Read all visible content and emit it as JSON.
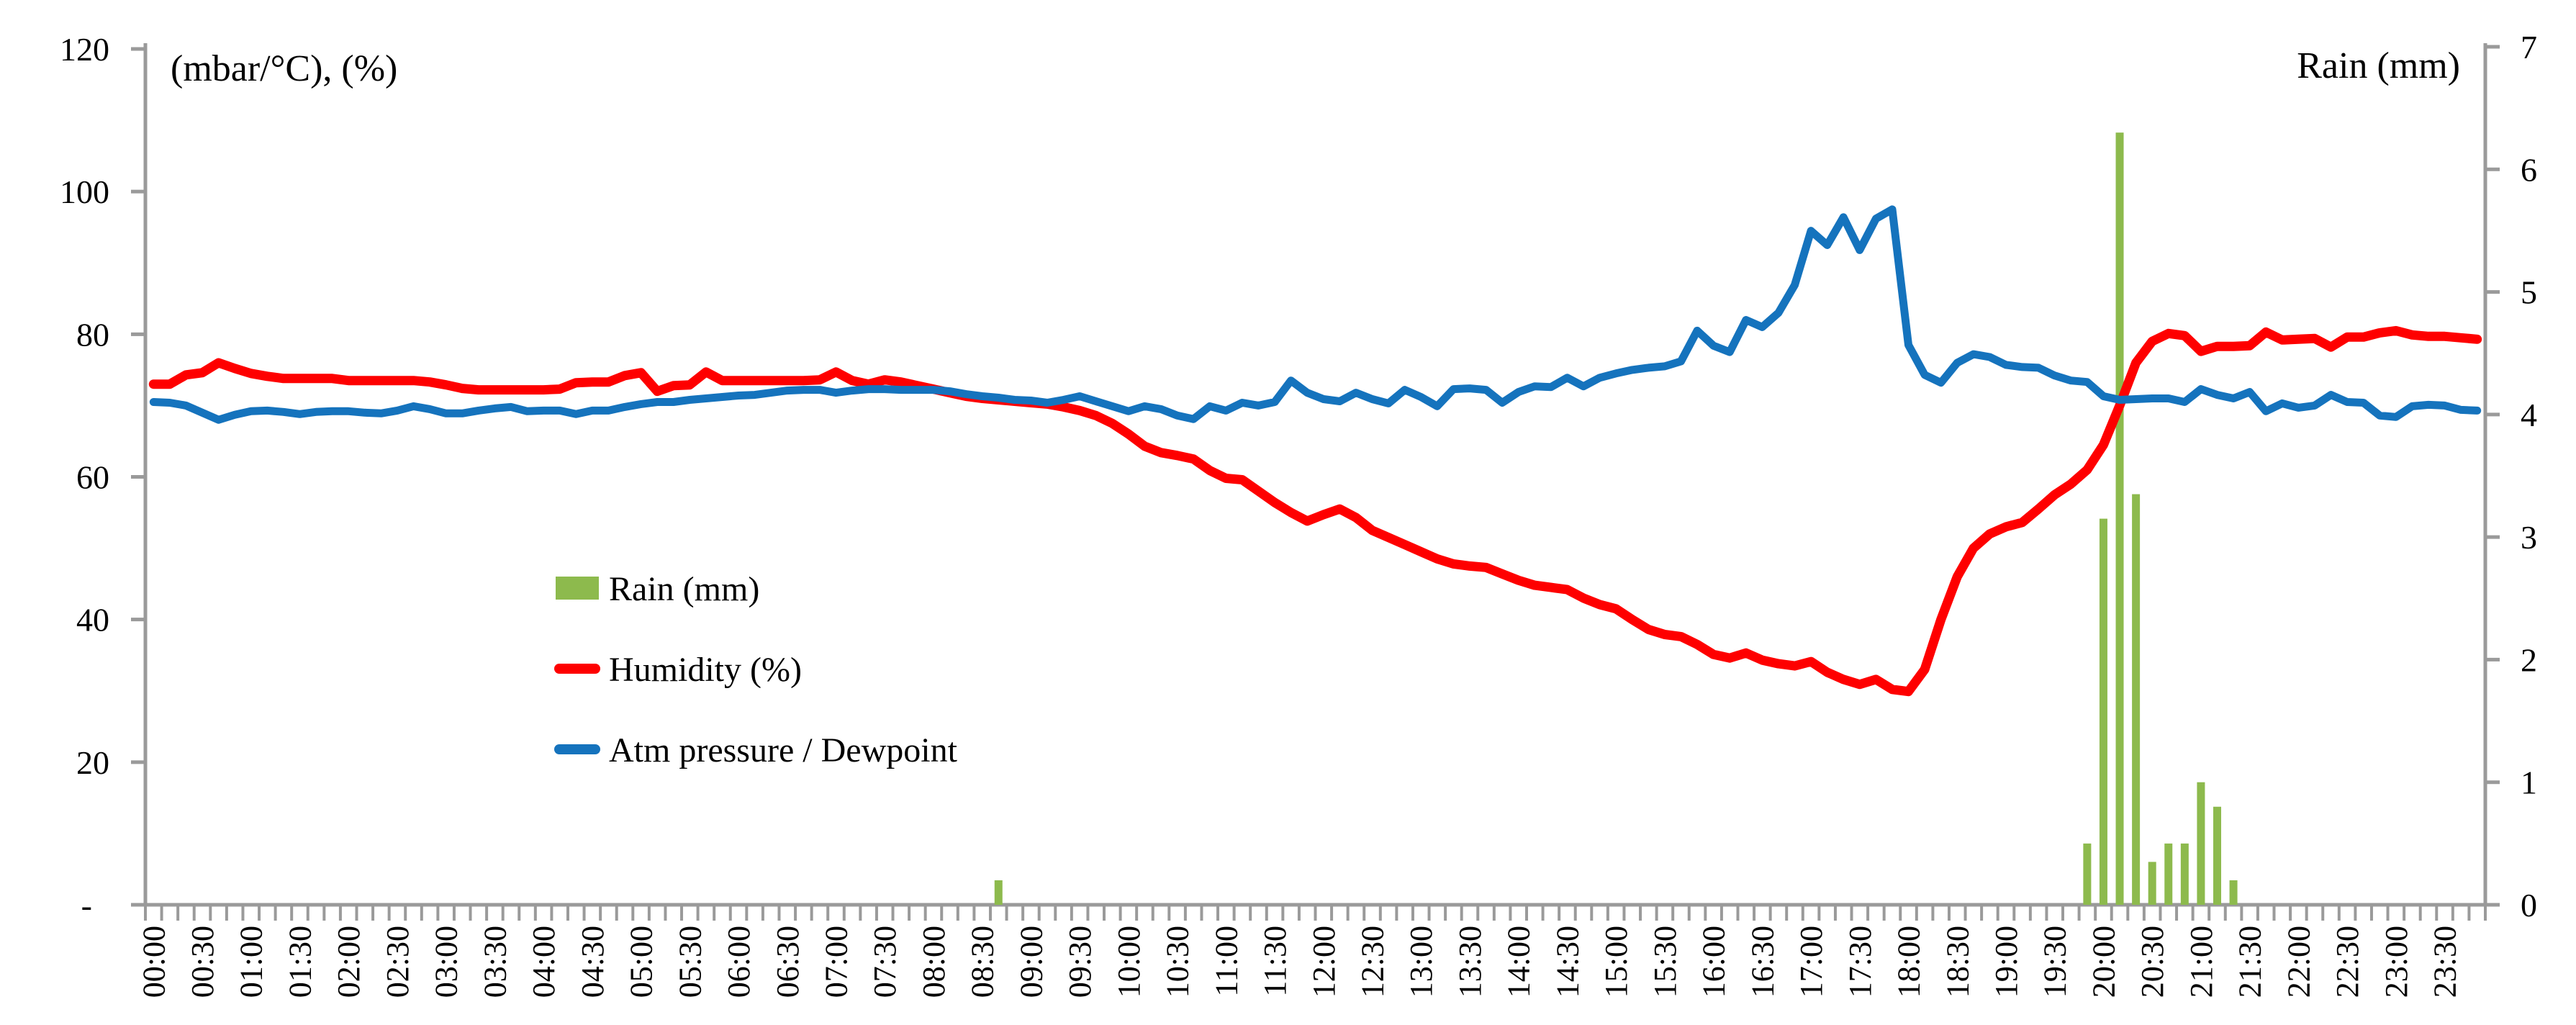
{
  "chart_data": {
    "type": "combo",
    "title": "",
    "left_axis": {
      "label": "(mbar/°C), (%)",
      "min": 0,
      "max": 120,
      "tick_step": 20,
      "tick_labels": [
        "120",
        "100",
        "80",
        "60",
        "40",
        "20",
        "-"
      ]
    },
    "right_axis": {
      "label": "Rain (mm)",
      "min": 0,
      "max": 7,
      "tick_step": 1,
      "tick_labels": [
        "7",
        "6",
        "5",
        "4",
        "3",
        "2",
        "1",
        "0"
      ]
    },
    "x_axis": {
      "tick_labels": [
        "00:00",
        "00:30",
        "01:00",
        "01:30",
        "02:00",
        "02:30",
        "03:00",
        "03:30",
        "04:00",
        "04:30",
        "05:00",
        "05:30",
        "06:00",
        "06:30",
        "07:00",
        "07:30",
        "08:00",
        "08:30",
        "09:00",
        "09:30",
        "10:00",
        "10:30",
        "11:00",
        "11:30",
        "12:00",
        "12:30",
        "13:00",
        "13:30",
        "14:00",
        "14:30",
        "15:00",
        "15:30",
        "16:00",
        "16:30",
        "17:00",
        "17:30",
        "18:00",
        "18:30",
        "19:00",
        "19:30",
        "20:00",
        "20:30",
        "21:00",
        "21:30",
        "22:00",
        "22:30",
        "23:00",
        "23:30"
      ],
      "points_per_label": 3,
      "point_interval_minutes": 10
    },
    "legend": [
      {
        "label": "Rain (mm)",
        "swatch": "bar",
        "color": "#8DBA4D"
      },
      {
        "label": "Humidity (%)",
        "swatch": "line",
        "color": "#FE0000"
      },
      {
        "label": "Atm pressure / Dewpoint",
        "swatch": "line",
        "color": "#1573BD"
      }
    ],
    "series": [
      {
        "name": "Rain (mm)",
        "type": "bar",
        "axis": "right",
        "color": "#8DBA4D",
        "values": [
          0,
          0,
          0,
          0,
          0,
          0,
          0,
          0,
          0,
          0,
          0,
          0,
          0,
          0,
          0,
          0,
          0,
          0,
          0,
          0,
          0,
          0,
          0,
          0,
          0,
          0,
          0,
          0,
          0,
          0,
          0,
          0,
          0,
          0,
          0,
          0,
          0,
          0,
          0,
          0,
          0,
          0,
          0,
          0,
          0,
          0,
          0,
          0,
          0,
          0,
          0,
          0,
          0.2,
          0,
          0,
          0,
          0,
          0,
          0,
          0,
          0,
          0,
          0,
          0,
          0,
          0,
          0,
          0,
          0,
          0,
          0,
          0,
          0,
          0,
          0,
          0,
          0,
          0,
          0,
          0,
          0,
          0,
          0,
          0,
          0,
          0,
          0,
          0,
          0,
          0,
          0,
          0,
          0,
          0,
          0,
          0,
          0,
          0,
          0,
          0,
          0,
          0,
          0,
          0,
          0,
          0,
          0,
          0,
          0,
          0,
          0,
          0,
          0,
          0,
          0,
          0,
          0,
          0,
          0,
          0.5,
          3.15,
          6.3,
          3.35,
          0.35,
          0.5,
          0.5,
          1.0,
          0.8,
          0.2,
          0,
          0,
          0,
          0,
          0,
          0,
          0,
          0,
          0,
          0,
          0,
          0,
          0,
          0,
          0
        ]
      },
      {
        "name": "Humidity (%)",
        "type": "line",
        "axis": "left",
        "color": "#FE0000",
        "values": [
          73.0,
          73.0,
          74.3,
          74.6,
          76.0,
          75.2,
          74.5,
          74.1,
          73.8,
          73.8,
          73.8,
          73.8,
          73.5,
          73.5,
          73.5,
          73.5,
          73.5,
          73.3,
          72.9,
          72.4,
          72.2,
          72.2,
          72.2,
          72.2,
          72.2,
          72.3,
          73.2,
          73.3,
          73.3,
          74.2,
          74.6,
          72.0,
          72.8,
          72.9,
          74.7,
          73.5,
          73.5,
          73.5,
          73.5,
          73.5,
          73.5,
          73.6,
          74.7,
          73.5,
          73.0,
          73.6,
          73.3,
          72.8,
          72.3,
          71.8,
          71.3,
          71.0,
          70.8,
          70.6,
          70.4,
          70.2,
          69.8,
          69.3,
          68.6,
          67.5,
          66.0,
          64.3,
          63.4,
          63.0,
          62.5,
          60.9,
          59.8,
          59.6,
          58.0,
          56.4,
          55.0,
          53.8,
          54.7,
          55.5,
          54.3,
          52.5,
          51.5,
          50.5,
          49.5,
          48.5,
          47.8,
          47.5,
          47.3,
          46.4,
          45.5,
          44.8,
          44.5,
          44.2,
          43.0,
          42.1,
          41.5,
          40.0,
          38.6,
          37.9,
          37.6,
          36.5,
          35.1,
          34.6,
          35.3,
          34.3,
          33.8,
          33.5,
          34.1,
          32.6,
          31.6,
          30.9,
          31.6,
          30.2,
          29.9,
          33.0,
          40.0,
          46.0,
          50.0,
          52.0,
          53.0,
          53.6,
          55.5,
          57.5,
          59.0,
          61.0,
          64.5,
          70.0,
          76.0,
          79.0,
          80.1,
          79.8,
          77.6,
          78.3,
          78.3,
          78.4,
          80.3,
          79.2,
          79.3,
          79.4,
          78.2,
          79.6,
          79.6,
          80.2,
          80.5,
          79.9,
          79.7,
          79.7,
          79.5,
          79.3
        ]
      },
      {
        "name": "Atm pressure / Dewpoint",
        "type": "line",
        "axis": "left",
        "color": "#1573BD",
        "values": [
          70.5,
          70.4,
          70.0,
          69.0,
          68.0,
          68.7,
          69.2,
          69.3,
          69.1,
          68.8,
          69.1,
          69.2,
          69.2,
          69.0,
          68.9,
          69.3,
          69.9,
          69.5,
          68.9,
          68.9,
          69.3,
          69.6,
          69.8,
          69.2,
          69.3,
          69.3,
          68.8,
          69.3,
          69.3,
          69.8,
          70.2,
          70.5,
          70.5,
          70.8,
          71.0,
          71.2,
          71.4,
          71.5,
          71.8,
          72.1,
          72.2,
          72.2,
          71.8,
          72.1,
          72.3,
          72.3,
          72.2,
          72.2,
          72.2,
          72.0,
          71.6,
          71.3,
          71.1,
          70.8,
          70.7,
          70.4,
          70.8,
          71.3,
          70.6,
          69.9,
          69.2,
          69.9,
          69.5,
          68.6,
          68.1,
          69.9,
          69.3,
          70.4,
          70.0,
          70.5,
          73.5,
          71.8,
          70.9,
          70.6,
          71.8,
          70.9,
          70.3,
          72.2,
          71.2,
          69.9,
          72.3,
          72.4,
          72.2,
          70.4,
          71.9,
          72.7,
          72.6,
          73.9,
          72.7,
          73.9,
          74.5,
          75.0,
          75.3,
          75.5,
          76.2,
          80.5,
          78.4,
          77.5,
          82.0,
          81.0,
          83.0,
          86.9,
          94.5,
          92.5,
          96.4,
          91.8,
          96.2,
          97.5,
          78.5,
          74.3,
          73.2,
          76.0,
          77.2,
          76.8,
          75.7,
          75.4,
          75.3,
          74.2,
          73.5,
          73.3,
          71.3,
          70.8,
          70.9,
          71.0,
          71.0,
          70.5,
          72.3,
          71.5,
          71.0,
          71.9,
          69.2,
          70.3,
          69.7,
          70.0,
          71.5,
          70.5,
          70.4,
          68.6,
          68.4,
          69.9,
          70.1,
          70.0,
          69.4,
          69.3
        ]
      }
    ],
    "layout": {
      "axis_color": "#9A9A9A",
      "plot": {
        "x0": 202,
        "x1": 3453,
        "y_top_left120": 68,
        "y_top_right7": 65,
        "y_bottom": 1257
      },
      "legend_position": "middle-left",
      "grid": false
    }
  }
}
